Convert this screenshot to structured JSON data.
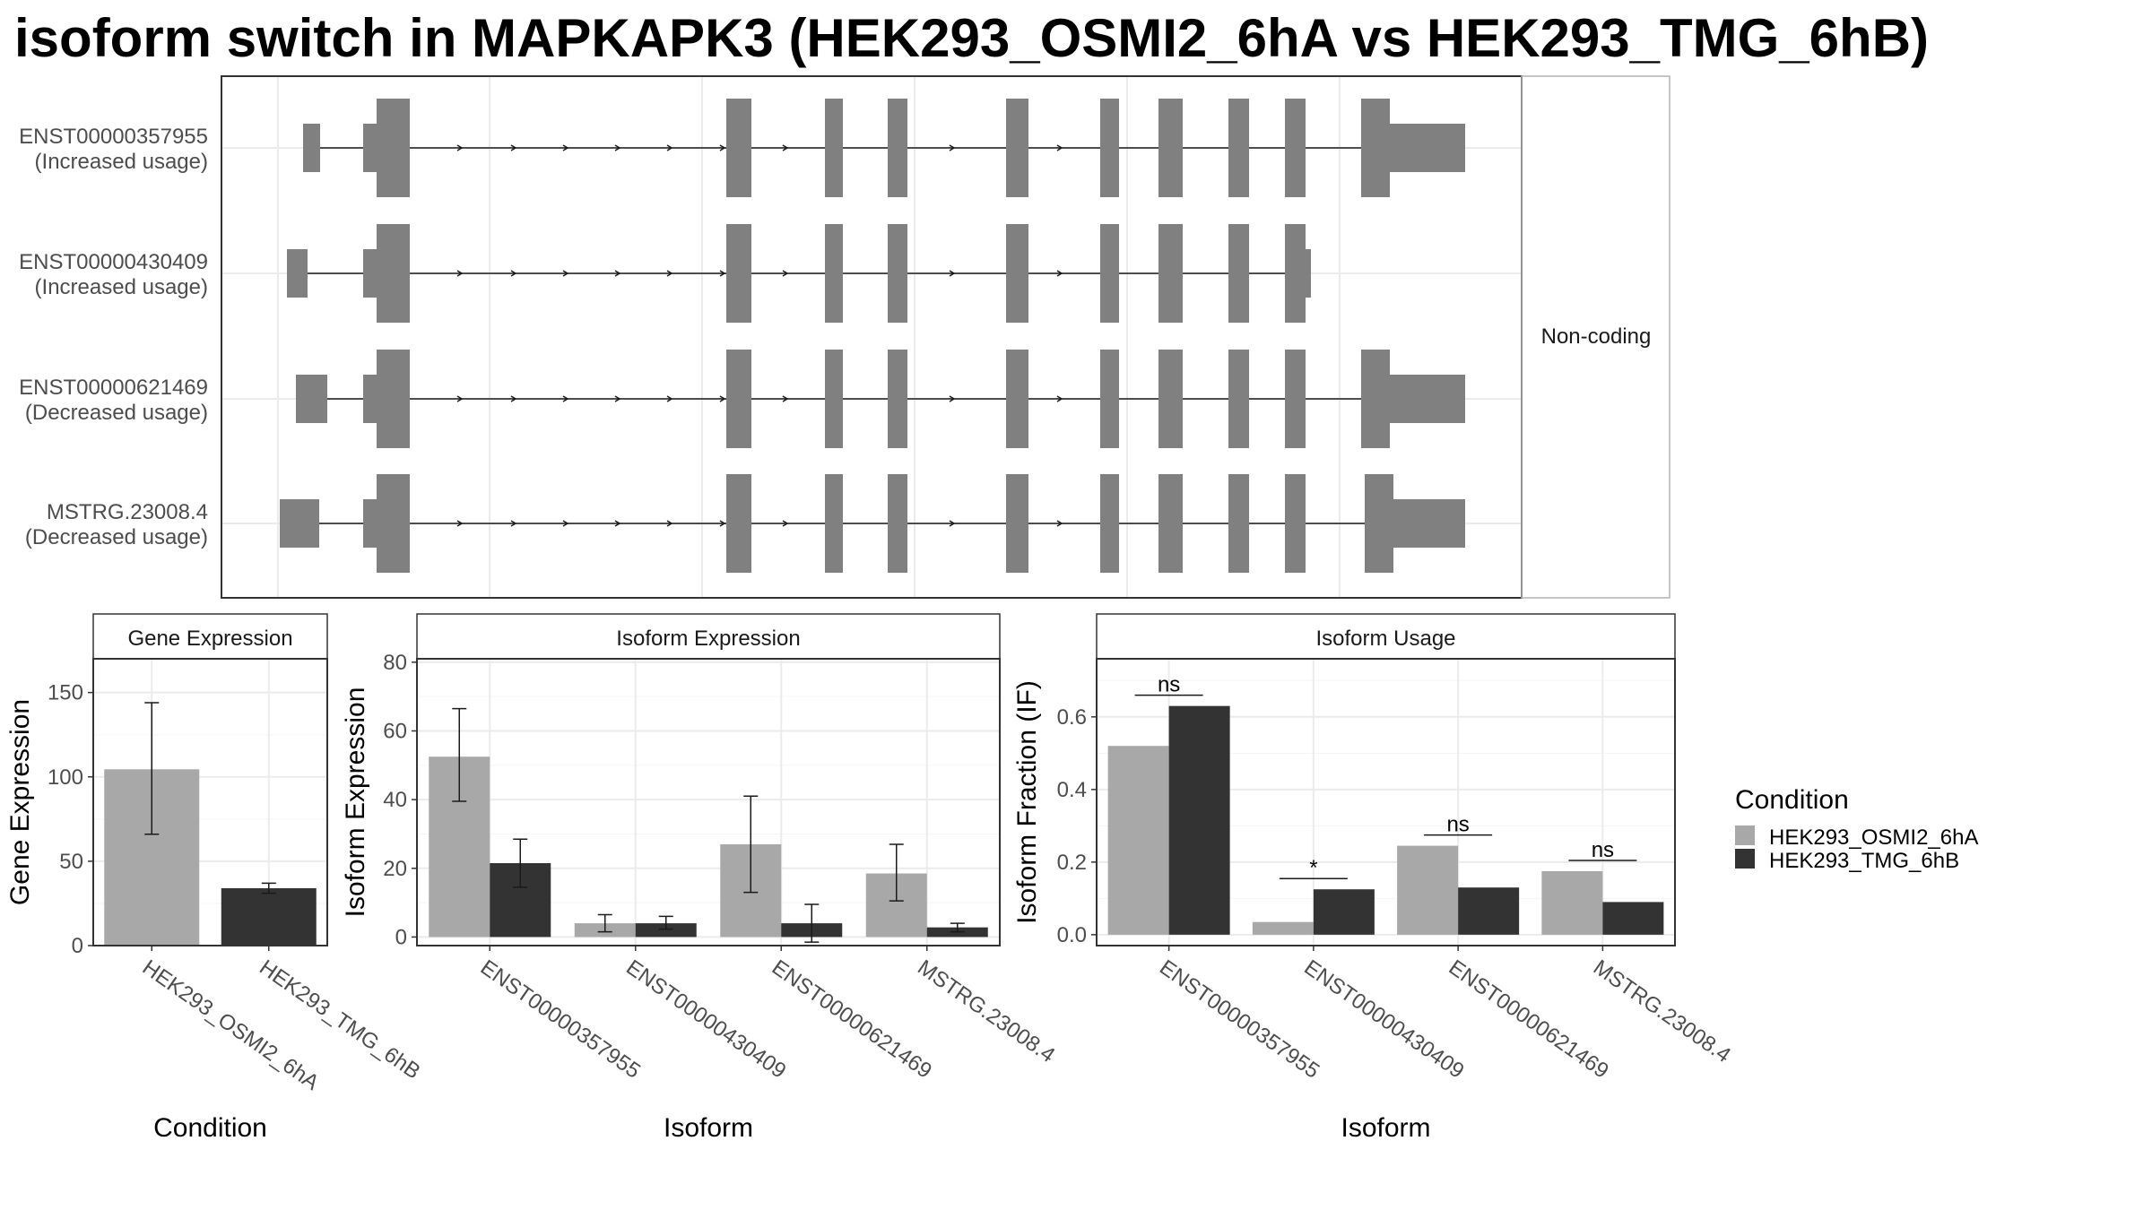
{
  "title": "isoform switch in MAPKAPK3 (HEK293_OSMI2_6hA vs HEK293_TMG_6hB)",
  "colors": {
    "cond_a": "#a8a8a8",
    "cond_b": "#333333",
    "exon": "#808080",
    "grid": "#ebebeb",
    "panel_border": "#333333",
    "strip_fill": "#ffffff"
  },
  "structure": {
    "strip_label": "Non-coding",
    "transcripts": [
      {
        "id": "ENST00000357955",
        "usage": "(Increased usage)"
      },
      {
        "id": "ENST00000430409",
        "usage": "(Increased usage)"
      },
      {
        "id": "ENST00000621469",
        "usage": "(Decreased usage)"
      },
      {
        "id": "MSTRG.23008.4",
        "usage": "(Decreased usage)"
      }
    ]
  },
  "legend": {
    "title": "Condition",
    "items": [
      {
        "label": "HEK293_OSMI2_6hA",
        "color": "#a8a8a8"
      },
      {
        "label": "HEK293_TMG_6hB",
        "color": "#333333"
      }
    ]
  },
  "chart_data": [
    {
      "type": "bar",
      "title": "Gene Expression",
      "xlabel": "Condition",
      "ylabel": "Gene Expression",
      "ylim": [
        0,
        170
      ],
      "yticks": [
        0,
        50,
        100,
        150
      ],
      "categories": [
        "HEK293_OSMI2_6hA",
        "HEK293_TMG_6hB"
      ],
      "values": [
        104.5,
        34
      ],
      "errors": [
        [
          66,
          144
        ],
        [
          31,
          37
        ]
      ],
      "grid": true
    },
    {
      "type": "bar",
      "title": "Isoform Expression",
      "xlabel": "Isoform",
      "ylabel": "Isoform Expression",
      "ylim": [
        -2.5,
        81
      ],
      "yticks": [
        0,
        20,
        40,
        60,
        80
      ],
      "categories": [
        "ENST00000357955",
        "ENST00000430409",
        "ENST00000621469",
        "MSTRG.23008.4"
      ],
      "series": [
        {
          "name": "HEK293_OSMI2_6hA",
          "values": [
            52.5,
            4,
            27,
            18.5
          ],
          "errors": [
            [
              39.5,
              66.5
            ],
            [
              1.5,
              6.5
            ],
            [
              13,
              41
            ],
            [
              10.5,
              27
            ]
          ]
        },
        {
          "name": "HEK293_TMG_6hB",
          "values": [
            21.5,
            4,
            4,
            2.8
          ],
          "errors": [
            [
              14.5,
              28.5
            ],
            [
              2.3,
              6
            ],
            [
              -1.5,
              9.5
            ],
            [
              1.5,
              4
            ]
          ]
        }
      ],
      "grid": true
    },
    {
      "type": "bar",
      "title": "Isoform Usage",
      "xlabel": "Isoform",
      "ylabel": "Isoform Fraction (IF)",
      "ylim": [
        -0.03,
        0.76
      ],
      "yticks": [
        0.0,
        0.2,
        0.4,
        0.6
      ],
      "ytick_labels": [
        "0.0",
        "0.2",
        "0.4",
        "0.6"
      ],
      "categories": [
        "ENST00000357955",
        "ENST00000430409",
        "ENST00000621469",
        "MSTRG.23008.4"
      ],
      "series": [
        {
          "name": "HEK293_OSMI2_6hA",
          "values": [
            0.52,
            0.035,
            0.245,
            0.175
          ]
        },
        {
          "name": "HEK293_TMG_6hB",
          "values": [
            0.63,
            0.125,
            0.13,
            0.09
          ]
        }
      ],
      "significance": [
        "ns",
        "*",
        "ns",
        "ns"
      ],
      "grid": true
    }
  ]
}
